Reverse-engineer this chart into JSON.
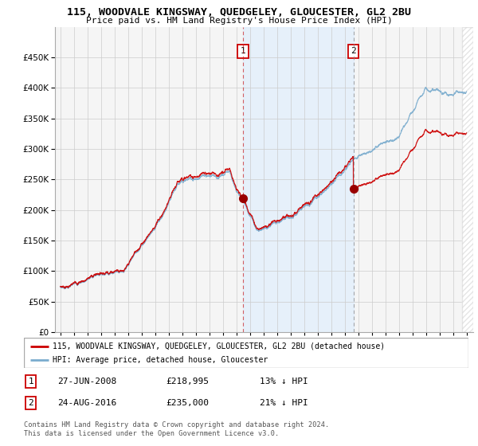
{
  "title": "115, WOODVALE KINGSWAY, QUEDGELEY, GLOUCESTER, GL2 2BU",
  "subtitle": "Price paid vs. HM Land Registry's House Price Index (HPI)",
  "ylim": [
    0,
    500000
  ],
  "yticks": [
    0,
    50000,
    100000,
    150000,
    200000,
    250000,
    300000,
    350000,
    400000,
    450000
  ],
  "x_start_year": 1995,
  "x_end_year": 2025,
  "marker1_date": 2008.5,
  "marker1_price": 218995,
  "marker2_date": 2016.65,
  "marker2_price": 235000,
  "line1_label": "115, WOODVALE KINGSWAY, QUEDGELEY, GLOUCESTER, GL2 2BU (detached house)",
  "line2_label": "HPI: Average price, detached house, Gloucester",
  "line1_color": "#cc0000",
  "line2_color": "#7aacce",
  "marker_color": "#990000",
  "vline1_color": "#cc2222",
  "vline2_color": "#888888",
  "shading_color": "#ddeeff",
  "footer": "Contains HM Land Registry data © Crown copyright and database right 2024.\nThis data is licensed under the Open Government Licence v3.0.",
  "background_color": "#ffffff",
  "grid_color": "#cccccc",
  "chart_bg": "#f5f5f5"
}
